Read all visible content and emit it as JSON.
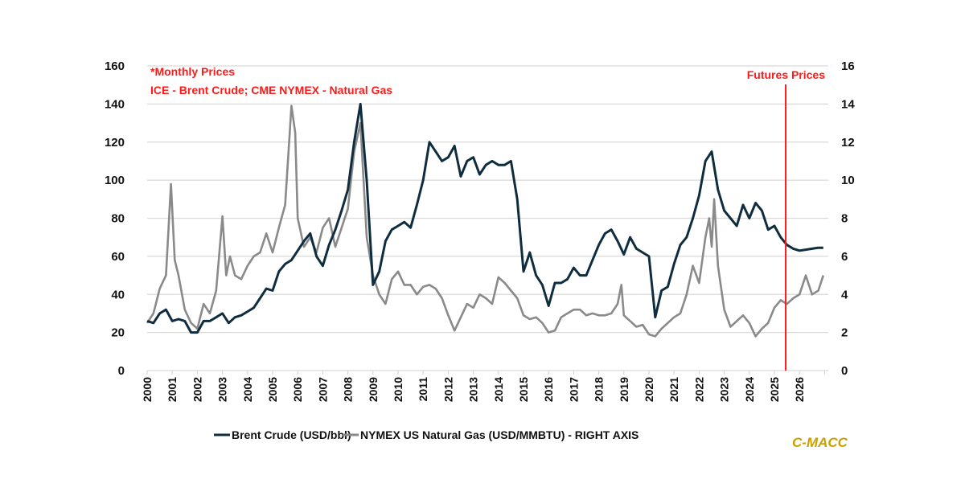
{
  "chart_data": {
    "type": "line",
    "title": "",
    "notes": [
      "*Monthly Prices",
      "ICE - Brent Crude; CME NYMEX - Natural Gas"
    ],
    "annotation": {
      "label": "Futures Prices",
      "x": 2025.45,
      "color": "#ff1a1a"
    },
    "left_axis": {
      "ylim": [
        0,
        160
      ],
      "ticks": [
        0,
        20,
        40,
        60,
        80,
        100,
        120,
        140,
        160
      ]
    },
    "right_axis": {
      "ylim": [
        0,
        16
      ],
      "ticks": [
        0,
        2,
        4,
        6,
        8,
        10,
        12,
        14,
        16
      ]
    },
    "x_range": [
      2000,
      2027
    ],
    "x_ticks": [
      "2000",
      "2001",
      "2002",
      "2003",
      "2004",
      "2005",
      "2006",
      "2007",
      "2008",
      "2009",
      "2010",
      "2011",
      "2012",
      "2013",
      "2014",
      "2015",
      "2016",
      "2017",
      "2018",
      "2019",
      "2020",
      "2021",
      "2022",
      "2023",
      "2024",
      "2025",
      "2026"
    ],
    "grid": true,
    "legend_position": "bottom",
    "brand": "C-MACC",
    "series": [
      {
        "name": "Brent Crude (USD/bbl)",
        "axis": "left",
        "color": "#0f2d3f",
        "x": [
          2000.0,
          2000.25,
          2000.5,
          2000.75,
          2001.0,
          2001.25,
          2001.5,
          2001.75,
          2002.0,
          2002.25,
          2002.5,
          2002.75,
          2003.0,
          2003.25,
          2003.5,
          2003.75,
          2004.0,
          2004.25,
          2004.5,
          2004.75,
          2005.0,
          2005.25,
          2005.5,
          2005.75,
          2006.0,
          2006.25,
          2006.5,
          2006.75,
          2007.0,
          2007.25,
          2007.5,
          2007.75,
          2008.0,
          2008.25,
          2008.5,
          2008.75,
          2009.0,
          2009.25,
          2009.5,
          2009.75,
          2010.0,
          2010.25,
          2010.5,
          2010.75,
          2011.0,
          2011.25,
          2011.5,
          2011.75,
          2012.0,
          2012.25,
          2012.5,
          2012.75,
          2013.0,
          2013.25,
          2013.5,
          2013.75,
          2014.0,
          2014.25,
          2014.5,
          2014.75,
          2015.0,
          2015.25,
          2015.5,
          2015.75,
          2016.0,
          2016.25,
          2016.5,
          2016.75,
          2017.0,
          2017.25,
          2017.5,
          2017.75,
          2018.0,
          2018.25,
          2018.5,
          2018.75,
          2019.0,
          2019.25,
          2019.5,
          2019.75,
          2020.0,
          2020.25,
          2020.5,
          2020.75,
          2021.0,
          2021.25,
          2021.5,
          2021.75,
          2022.0,
          2022.25,
          2022.5,
          2022.75,
          2023.0,
          2023.25,
          2023.5,
          2023.75,
          2024.0,
          2024.25,
          2024.5,
          2024.75,
          2025.0,
          2025.25,
          2025.5,
          2025.75,
          2026.0,
          2026.25,
          2026.5,
          2026.75,
          2026.95
        ],
        "values": [
          26,
          25,
          30,
          32,
          26,
          27,
          26,
          20,
          20,
          26,
          26,
          28,
          30,
          25,
          28,
          29,
          31,
          33,
          38,
          43,
          42,
          52,
          56,
          58,
          63,
          68,
          72,
          60,
          55,
          66,
          74,
          84,
          95,
          120,
          140,
          100,
          45,
          52,
          68,
          74,
          76,
          78,
          75,
          87,
          100,
          120,
          115,
          110,
          112,
          118,
          102,
          110,
          112,
          103,
          108,
          110,
          108,
          108,
          110,
          90,
          52,
          62,
          50,
          45,
          34,
          46,
          46,
          48,
          54,
          50,
          50,
          58,
          66,
          72,
          74,
          68,
          61,
          70,
          64,
          62,
          60,
          28,
          42,
          44,
          56,
          66,
          70,
          80,
          92,
          110,
          115,
          95,
          84,
          80,
          76,
          87,
          80,
          88,
          84,
          74,
          76,
          70,
          66,
          64,
          63,
          63.5,
          64,
          64.5,
          64.5
        ]
      },
      {
        "name": "NYMEX US Natural Gas (USD/MMBTU) - RIGHT AXIS",
        "axis": "right",
        "color": "#8a8a8a",
        "x": [
          2000.0,
          2000.25,
          2000.5,
          2000.75,
          2000.95,
          2001.1,
          2001.25,
          2001.5,
          2001.75,
          2002.0,
          2002.25,
          2002.5,
          2002.75,
          2003.0,
          2003.15,
          2003.3,
          2003.5,
          2003.75,
          2004.0,
          2004.25,
          2004.5,
          2004.75,
          2005.0,
          2005.25,
          2005.5,
          2005.75,
          2005.9,
          2006.0,
          2006.25,
          2006.5,
          2006.75,
          2007.0,
          2007.25,
          2007.5,
          2007.75,
          2008.0,
          2008.25,
          2008.5,
          2008.75,
          2009.0,
          2009.25,
          2009.5,
          2009.75,
          2010.0,
          2010.25,
          2010.5,
          2010.75,
          2011.0,
          2011.25,
          2011.5,
          2011.75,
          2012.0,
          2012.25,
          2012.5,
          2012.75,
          2013.0,
          2013.25,
          2013.5,
          2013.75,
          2014.0,
          2014.25,
          2014.5,
          2014.75,
          2015.0,
          2015.25,
          2015.5,
          2015.75,
          2016.0,
          2016.25,
          2016.5,
          2016.75,
          2017.0,
          2017.25,
          2017.5,
          2017.75,
          2018.0,
          2018.25,
          2018.5,
          2018.75,
          2018.9,
          2019.0,
          2019.25,
          2019.5,
          2019.75,
          2020.0,
          2020.25,
          2020.5,
          2020.75,
          2021.0,
          2021.25,
          2021.5,
          2021.75,
          2022.0,
          2022.25,
          2022.4,
          2022.5,
          2022.6,
          2022.75,
          2023.0,
          2023.25,
          2023.5,
          2023.75,
          2024.0,
          2024.25,
          2024.5,
          2024.75,
          2025.0,
          2025.25,
          2025.5,
          2025.75,
          2026.0,
          2026.25,
          2026.5,
          2026.75,
          2026.95
        ],
        "values": [
          2.5,
          3.0,
          4.3,
          5.0,
          9.8,
          5.8,
          5.0,
          3.2,
          2.5,
          2.2,
          3.5,
          3.0,
          4.2,
          8.1,
          5.0,
          6.0,
          5.0,
          4.8,
          5.5,
          6.0,
          6.2,
          7.2,
          6.2,
          7.5,
          8.7,
          13.9,
          12.5,
          8.0,
          6.5,
          7.0,
          6.2,
          7.5,
          8.0,
          6.5,
          7.5,
          8.5,
          11.5,
          13.0,
          7.0,
          5.0,
          4.0,
          3.5,
          4.8,
          5.2,
          4.5,
          4.5,
          4.0,
          4.4,
          4.5,
          4.3,
          3.8,
          2.9,
          2.1,
          2.8,
          3.5,
          3.3,
          4.0,
          3.8,
          3.5,
          4.9,
          4.6,
          4.2,
          3.8,
          2.9,
          2.7,
          2.8,
          2.5,
          2.0,
          2.1,
          2.8,
          3.0,
          3.2,
          3.2,
          2.9,
          3.0,
          2.9,
          2.9,
          3.0,
          3.5,
          4.5,
          2.9,
          2.6,
          2.3,
          2.4,
          1.9,
          1.8,
          2.2,
          2.5,
          2.8,
          3.0,
          4.0,
          5.5,
          4.6,
          7.0,
          8.0,
          6.5,
          9.0,
          5.5,
          3.2,
          2.3,
          2.6,
          2.9,
          2.5,
          1.8,
          2.2,
          2.5,
          3.3,
          3.7,
          3.5,
          3.8,
          4.0,
          5.0,
          4.0,
          4.2,
          5.0
        ]
      }
    ]
  }
}
